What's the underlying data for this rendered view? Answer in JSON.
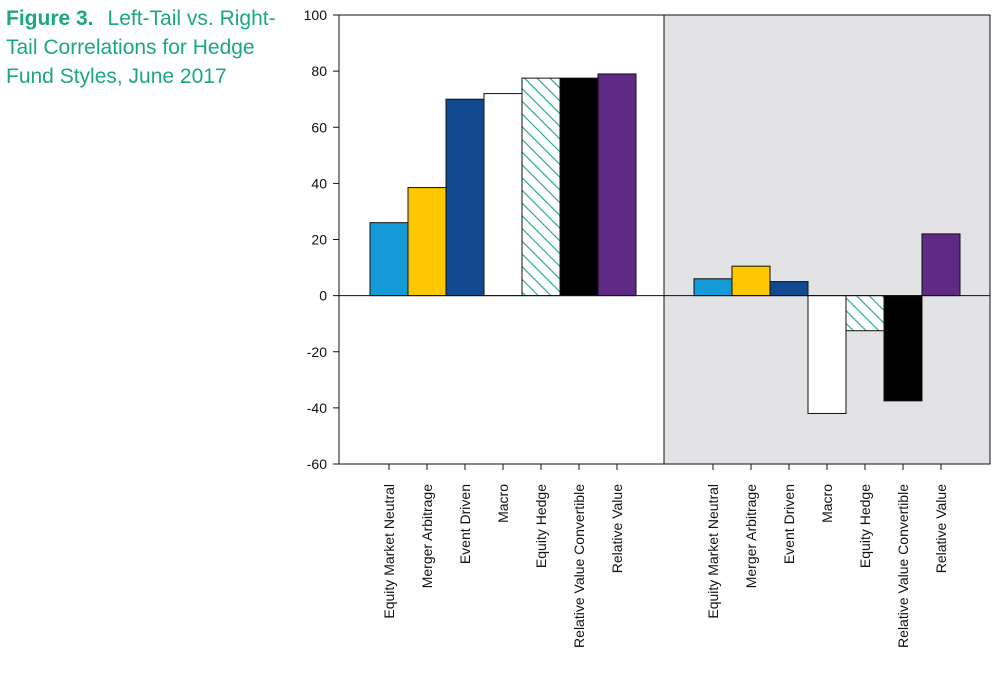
{
  "figure": {
    "label": "Figure 3.",
    "title": "Left-Tail vs. Right-Tail Correlations for Hedge Fund Styles, June 2017"
  },
  "chart_data": {
    "type": "bar",
    "ylim": [
      -60,
      100
    ],
    "yticks": [
      100,
      80,
      60,
      40,
      20,
      0,
      -20,
      -40,
      -60
    ],
    "grid": false,
    "categories": [
      "Equity Market Neutral",
      "Merger Arbitrage",
      "Event Driven",
      "Macro",
      "Equity Hedge",
      "Relative Value Convertible",
      "Relative Value"
    ],
    "panels": [
      {
        "shaded": false,
        "values": [
          26,
          38.5,
          70,
          72,
          77.5,
          77.5,
          79
        ]
      },
      {
        "shaded": true,
        "values": [
          6,
          10.5,
          5,
          -42,
          -12.5,
          -37.5,
          22
        ]
      }
    ],
    "colors": {
      "Equity Market Neutral": "#149ad6",
      "Merger Arbitrage": "#fdc800",
      "Event Driven": "#114a8f",
      "Macro": "#ffffff",
      "Equity Hedge": "hatch-#1aa783",
      "Relative Value Convertible": "#000000",
      "Relative Value": "#5e2a84"
    },
    "panel_background": "#e3e3e5",
    "axis_color": "#111111"
  }
}
